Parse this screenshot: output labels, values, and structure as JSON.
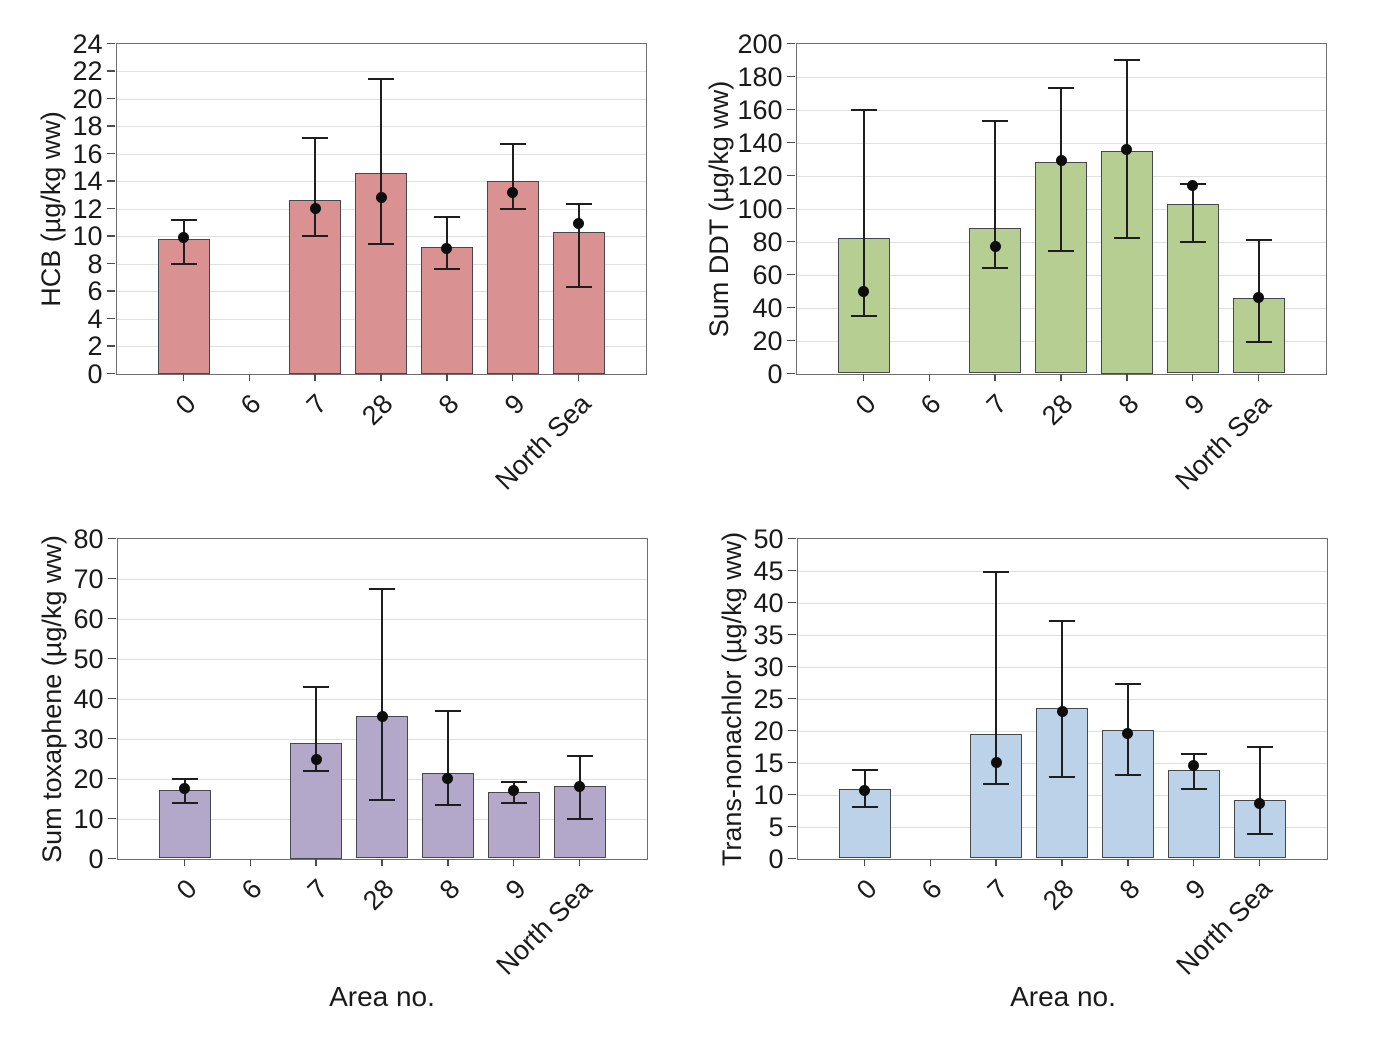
{
  "figure": {
    "x_axis_title": "Area no.",
    "categories": [
      "0",
      "6",
      "7",
      "28",
      "8",
      "9",
      "North Sea"
    ],
    "colors": {
      "hcb_bar": "#D99191",
      "ddt_bar": "#B6CE92",
      "toxaphene_bar": "#B3A7CA",
      "nonachlor_bar": "#BCD2E8",
      "bar_border": "#44474B",
      "error_bar": "#1E1E1E",
      "dot": "#0D0D0D",
      "gridline": "#E0E0E0",
      "plot_border": "#6E6E6E"
    }
  },
  "chart_data": [
    {
      "type": "bar",
      "title": "",
      "ylabel": "HCB (µg/kg ww)",
      "categories": [
        "0",
        "6",
        "7",
        "28",
        "8",
        "9",
        "North Sea"
      ],
      "ylim": [
        0,
        24
      ],
      "ytick_step": 2,
      "grid": true,
      "legend": "none",
      "bar_color": "#D99191",
      "series": [
        {
          "name": "bar",
          "values": [
            9.8,
            null,
            12.6,
            14.6,
            9.2,
            14.0,
            10.3
          ]
        },
        {
          "name": "dot",
          "values": [
            9.9,
            null,
            12.0,
            12.8,
            9.1,
            13.2,
            10.9
          ]
        }
      ],
      "error_low": [
        8.0,
        null,
        10.0,
        9.4,
        7.6,
        12.0,
        6.3
      ],
      "error_high": [
        11.2,
        null,
        17.1,
        21.4,
        11.4,
        16.7,
        12.3
      ]
    },
    {
      "type": "bar",
      "title": "",
      "ylabel": "Sum DDT (µg/kg ww)",
      "categories": [
        "0",
        "6",
        "7",
        "28",
        "8",
        "9",
        "North Sea"
      ],
      "ylim": [
        0,
        200
      ],
      "ytick_step": 20,
      "grid": true,
      "legend": "none",
      "bar_color": "#B6CE92",
      "series": [
        {
          "name": "bar",
          "values": [
            82,
            null,
            88,
            128,
            135,
            103,
            46
          ]
        },
        {
          "name": "dot",
          "values": [
            50,
            null,
            77,
            129,
            136,
            114,
            46
          ]
        }
      ],
      "error_low": [
        35,
        null,
        64,
        74,
        82,
        80,
        19
      ],
      "error_high": [
        160,
        null,
        153,
        173,
        190,
        115,
        81
      ]
    },
    {
      "type": "bar",
      "title": "",
      "ylabel": "Sum toxaphene (µg/kg ww)",
      "xlabel": "Area no.",
      "categories": [
        "0",
        "6",
        "7",
        "28",
        "8",
        "9",
        "North Sea"
      ],
      "ylim": [
        0,
        80
      ],
      "ytick_step": 10,
      "grid": true,
      "legend": "none",
      "bar_color": "#B3A7CA",
      "series": [
        {
          "name": "bar",
          "values": [
            17.2,
            null,
            29.0,
            35.7,
            21.3,
            16.7,
            18.2
          ]
        },
        {
          "name": "dot",
          "values": [
            17.6,
            null,
            24.7,
            35.6,
            20.0,
            17.0,
            18.0
          ]
        }
      ],
      "error_low": [
        14.0,
        null,
        22.0,
        14.6,
        13.4,
        13.9,
        9.8
      ],
      "error_high": [
        20.0,
        null,
        43.0,
        67.5,
        37.0,
        19.2,
        25.6
      ]
    },
    {
      "type": "bar",
      "title": "",
      "ylabel": "Trans-nonachlor (µg/kg ww)",
      "xlabel": "Area no.",
      "categories": [
        "0",
        "6",
        "7",
        "28",
        "8",
        "9",
        "North Sea"
      ],
      "ylim": [
        0,
        50
      ],
      "ytick_step": 5,
      "grid": true,
      "legend": "none",
      "bar_color": "#BCD2E8",
      "series": [
        {
          "name": "bar",
          "values": [
            10.8,
            null,
            19.5,
            23.5,
            20.1,
            13.9,
            9.1
          ]
        },
        {
          "name": "dot",
          "values": [
            10.7,
            null,
            15.0,
            22.9,
            19.5,
            14.6,
            8.6
          ]
        }
      ],
      "error_low": [
        8.0,
        null,
        11.7,
        12.8,
        13.0,
        10.8,
        3.9
      ],
      "error_high": [
        13.8,
        null,
        44.8,
        37.1,
        27.3,
        16.4,
        17.4
      ]
    }
  ]
}
